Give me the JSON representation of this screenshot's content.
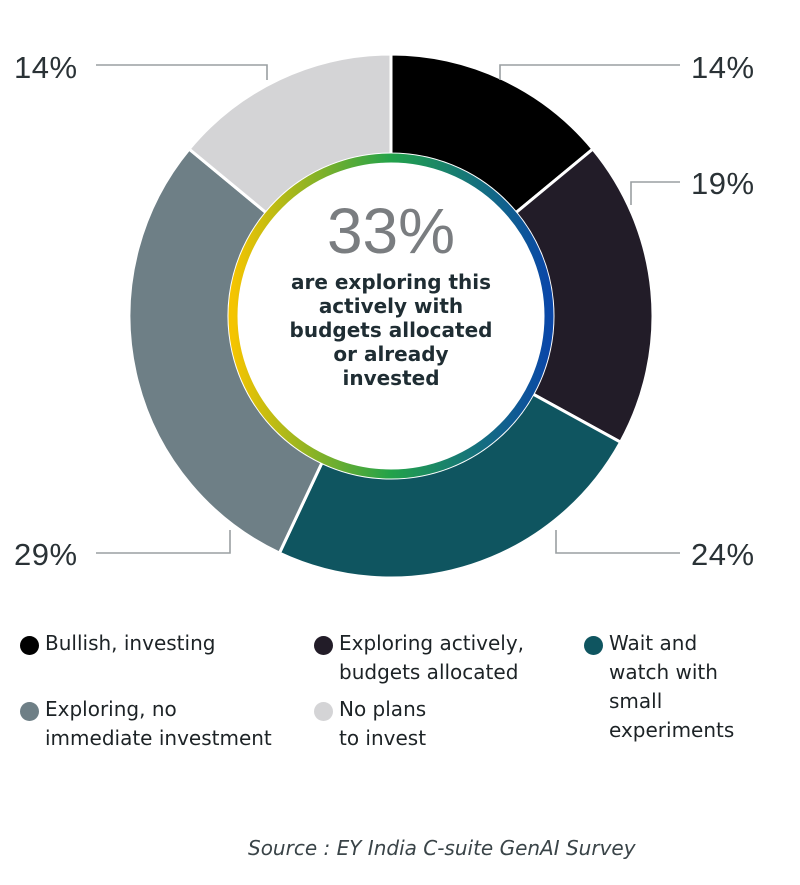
{
  "chart_data": {
    "type": "pie",
    "subtype": "donut",
    "title": "",
    "categories": [
      "Bullish, investing",
      "Exploring actively, budgets allocated",
      "Wait and watch with small experiments",
      "Exploring, no immediate investment",
      "No plans to invest"
    ],
    "values": [
      14,
      19,
      24,
      29,
      14
    ],
    "unit": "%",
    "colors": [
      "#000000",
      "#221c28",
      "#0f5560",
      "#6e7f86",
      "#d4d4d6"
    ],
    "start_angle": "12 o'clock",
    "direction": "clockwise",
    "legend_position": "bottom",
    "center_annotation": {
      "value": "33%",
      "text": "are exploring this actively with budgets allocated or already invested"
    },
    "source": "Source : EY India C-suite GenAI Survey"
  },
  "labels": {
    "bullish": "14%",
    "exploring_active": "19%",
    "wait_watch": "24%",
    "exploring_no": "29%",
    "no_plans": "14%"
  },
  "center": {
    "big": "33%",
    "text": "are exploring this\nactively with\nbudgets allocated\nor already\ninvested"
  },
  "legend": [
    {
      "label": "Bullish, investing",
      "color": "#000000"
    },
    {
      "label": "Exploring actively,\nbudgets allocated",
      "color": "#221c28"
    },
    {
      "label": "Wait and\nwatch with\nsmall\nexperiments",
      "color": "#0f5560"
    },
    {
      "label": "Exploring, no\nimmediate investment",
      "color": "#6e7f86"
    },
    {
      "label": "No plans\nto invest",
      "color": "#d4d4d6"
    }
  ],
  "source": "Source : EY India C-suite GenAI Survey"
}
